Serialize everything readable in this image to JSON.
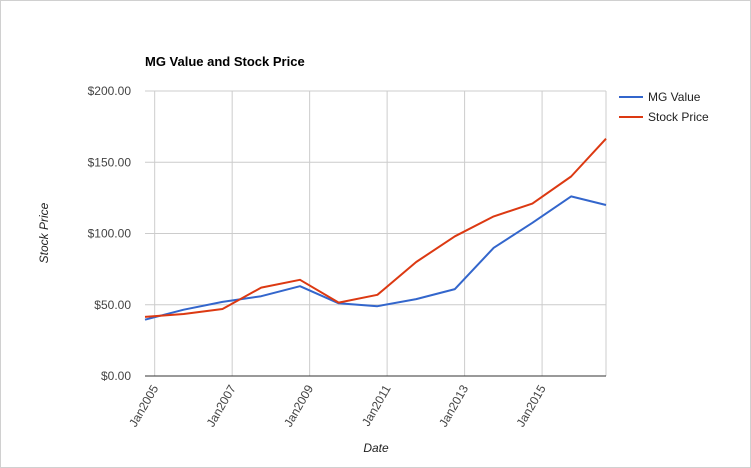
{
  "chart_data": {
    "type": "line",
    "title": "MG Value and Stock Price",
    "xlabel": "Date",
    "ylabel": "Stock Price",
    "ylim": [
      0,
      200
    ],
    "xlim": [
      2004.75,
      2016.65
    ],
    "grid": true,
    "legend_position": "right",
    "x_ticks": [
      {
        "label": "Jan2005",
        "value": 2005
      },
      {
        "label": "Jan2007",
        "value": 2007
      },
      {
        "label": "Jan2009",
        "value": 2009
      },
      {
        "label": "Jan2011",
        "value": 2011
      },
      {
        "label": "Jan2013",
        "value": 2013
      },
      {
        "label": "Jan2015",
        "value": 2015
      }
    ],
    "y_ticks": [
      {
        "label": "$0.00",
        "value": 0
      },
      {
        "label": "$50.00",
        "value": 50
      },
      {
        "label": "$100.00",
        "value": 100
      },
      {
        "label": "$150.00",
        "value": 150
      },
      {
        "label": "$200.00",
        "value": 200
      }
    ],
    "x": [
      2004.75,
      2005.75,
      2006.75,
      2007.75,
      2008.75,
      2009.75,
      2010.75,
      2011.75,
      2012.75,
      2013.75,
      2014.75,
      2015.75,
      2016.65
    ],
    "series": [
      {
        "name": "MG Value",
        "color": "#3366cc",
        "values": [
          39.5,
          46.5,
          52,
          56,
          63,
          51,
          49,
          54,
          61,
          90,
          107.5,
          126,
          120
        ]
      },
      {
        "name": "Stock Price",
        "color": "#dc3912",
        "values": [
          41.5,
          43.5,
          47,
          62,
          67.5,
          51.5,
          57,
          80,
          98,
          112,
          121,
          140,
          166.5
        ]
      }
    ]
  }
}
